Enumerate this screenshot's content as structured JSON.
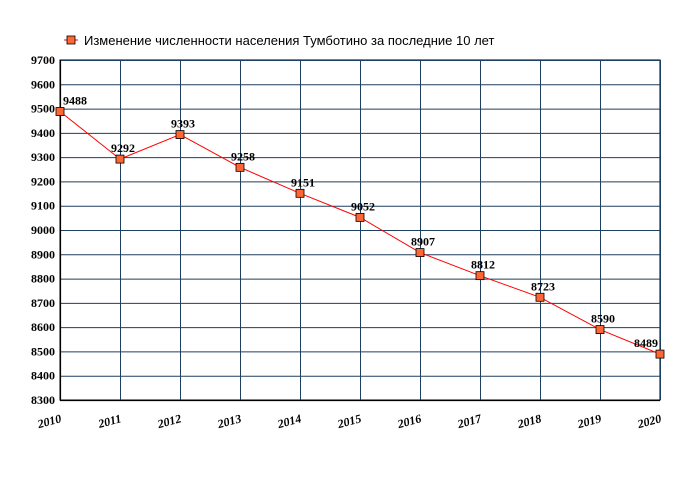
{
  "chart_data": {
    "type": "line",
    "legend": "Изменение численности населения Тумботино за последние 10 лет",
    "legend_position": "top-left",
    "x": [
      "2010",
      "2011",
      "2012",
      "2013",
      "2014",
      "2015",
      "2016",
      "2017",
      "2018",
      "2019",
      "2020"
    ],
    "series": [
      {
        "name": "Изменение численности населения Тумботино за последние 10 лет",
        "values": [
          9488,
          9292,
          9393,
          9258,
          9151,
          9052,
          8907,
          8812,
          8723,
          8590,
          8489
        ],
        "color": "#ff0000",
        "marker_color": "#ff6633"
      }
    ],
    "yticks": [
      8300,
      8400,
      8500,
      8600,
      8700,
      8800,
      8900,
      9000,
      9100,
      9200,
      9300,
      9400,
      9500,
      9600,
      9700
    ],
    "ylim": [
      8300,
      9700
    ],
    "grid": true,
    "grid_color": "#1f3f5f"
  }
}
